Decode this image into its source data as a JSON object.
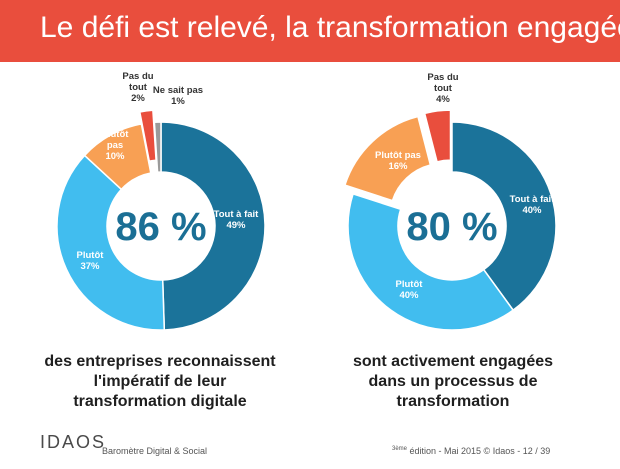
{
  "title": "Le défi est relevé, la transformation engagée",
  "colors": {
    "title_bg": "#e94e3d",
    "tout_a_fait": "#1b739a",
    "plutot": "#41bdef",
    "plutot_pas": "#f8a054",
    "pas_du_tout": "#e94e3d",
    "ne_sait_pas": "#9a9a9a",
    "center_text": "#1b6f95"
  },
  "chart_data": [
    {
      "type": "pie",
      "variant": "donut",
      "center_label": "86 %",
      "caption": [
        "des entreprises reconnaissent",
        "l'impératif de leur",
        "transformation digitale"
      ],
      "slices": [
        {
          "key": "tout_a_fait",
          "label": [
            "Tout à fait",
            "49%"
          ],
          "value": 49
        },
        {
          "key": "plutot",
          "label": [
            "Plutôt",
            "37%"
          ],
          "value": 37
        },
        {
          "key": "plutot_pas",
          "label": [
            "Plutôt",
            "pas",
            "10%"
          ],
          "value": 10
        },
        {
          "key": "pas_du_tout",
          "label": [
            "Pas du",
            "tout",
            "2%"
          ],
          "value": 2,
          "exploded": true
        },
        {
          "key": "ne_sait_pas",
          "label": [
            "Ne sait pas",
            "1%"
          ],
          "value": 1
        }
      ]
    },
    {
      "type": "pie",
      "variant": "donut",
      "center_label": "80 %",
      "caption": [
        "sont activement engagées",
        "dans un processus de",
        "transformation"
      ],
      "slices": [
        {
          "key": "tout_a_fait",
          "label": [
            "Tout à fait",
            "40%"
          ],
          "value": 40
        },
        {
          "key": "plutot",
          "label": [
            "Plutôt",
            "40%"
          ],
          "value": 40
        },
        {
          "key": "plutot_pas",
          "label": [
            "Plutôt pas",
            "16%"
          ],
          "value": 16,
          "exploded": true
        },
        {
          "key": "pas_du_tout",
          "label": [
            "Pas du",
            "tout",
            "4%"
          ],
          "value": 4,
          "exploded": true
        }
      ]
    }
  ],
  "footer": {
    "logo": "IDAOS",
    "left": "Baromètre Digital & Social",
    "edition_sup": "3ème",
    "right": " édition - Mai 2015 © Idaos  -  12 / 39"
  }
}
